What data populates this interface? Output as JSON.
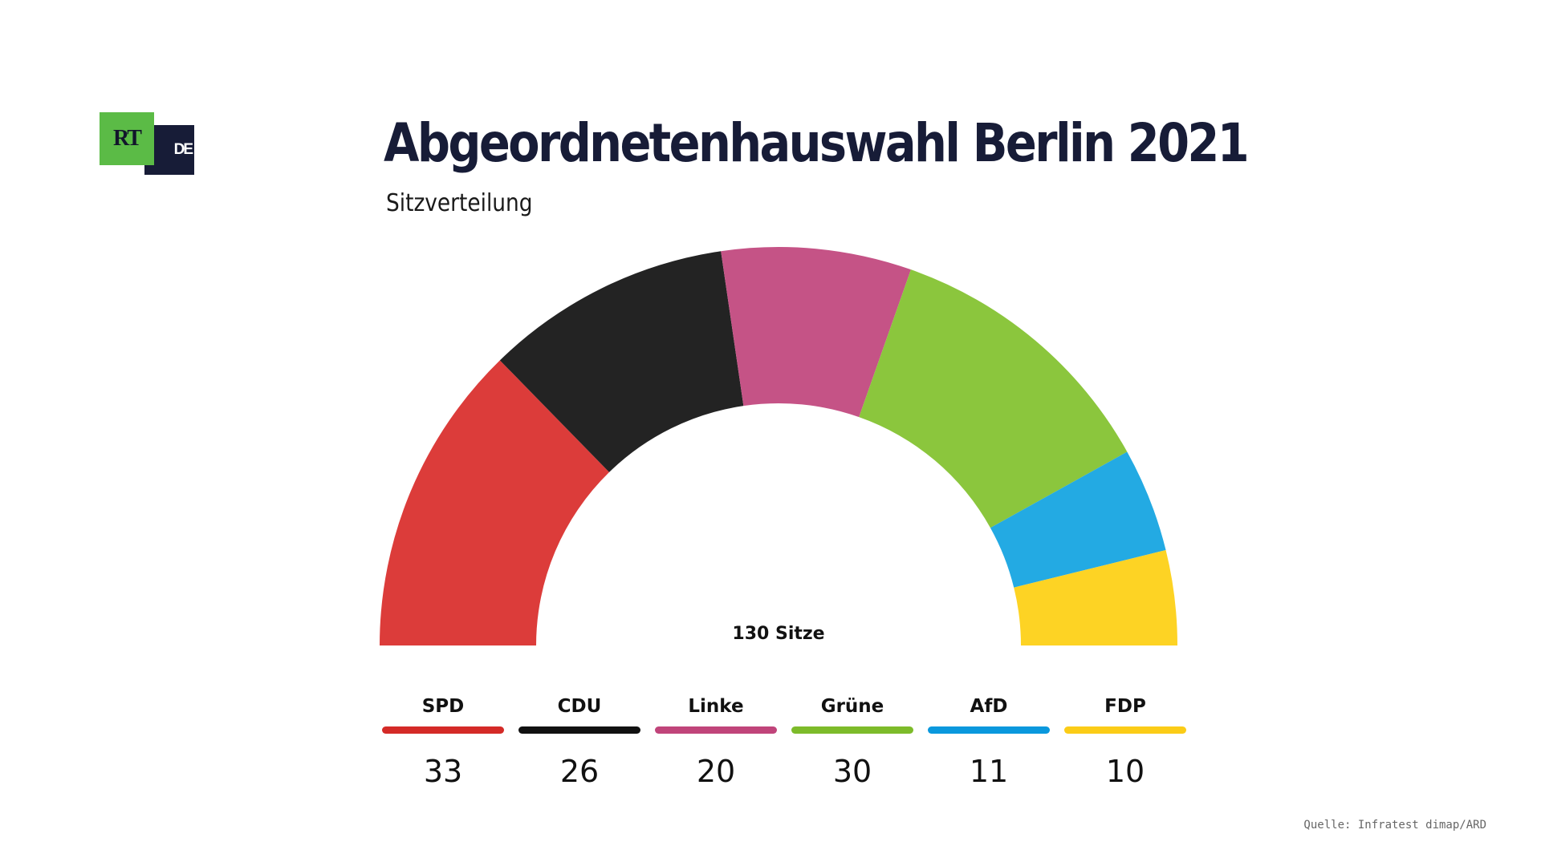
{
  "logo": {
    "rt": "RT",
    "de": "DE"
  },
  "title": "Abgeordnetenhauswahl Berlin 2021",
  "subtitle": "Sitzverteilung",
  "source": "Quelle: Infratest dimap/ARD",
  "chart_data": {
    "type": "pie",
    "variant": "half-donut parliament",
    "center_label": "130 Sitze",
    "total": 130,
    "categories": [
      "SPD",
      "CDU",
      "Linke",
      "Grüne",
      "AfD",
      "FDP"
    ],
    "values": [
      33,
      26,
      20,
      30,
      11,
      10
    ],
    "colors": [
      "#dc3c3a",
      "#232323",
      "#c55386",
      "#8bc63d",
      "#23aae3",
      "#fdd324"
    ],
    "legend_colors": [
      "#d42a27",
      "#111111",
      "#c0447a",
      "#7dbb2a",
      "#0a98dd",
      "#fbcc17"
    ]
  }
}
